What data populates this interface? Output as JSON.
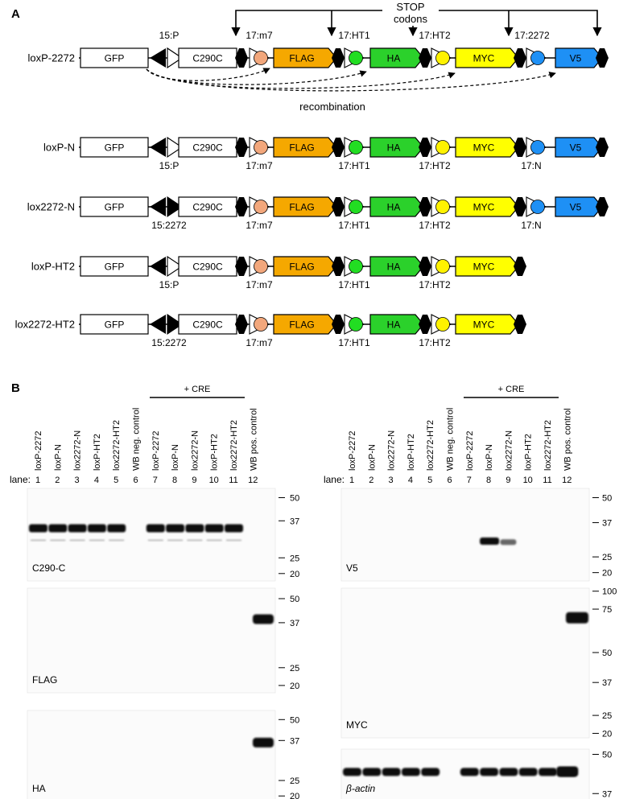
{
  "panelA": {
    "label": "A",
    "stop_label": [
      "STOP",
      "codons"
    ],
    "recombination_label": "recombination",
    "top_sites": [
      "15:P",
      "17:m7",
      "17:HT1",
      "17:HT2",
      "17:2272"
    ],
    "boxes": {
      "gfp": "GFP",
      "c290c": "C290C",
      "flag": "FLAG",
      "ha": "HA",
      "myc": "MYC",
      "v5": "V5"
    },
    "constructs": [
      {
        "name": "loxP-2272",
        "sites": []
      },
      {
        "name": "loxP-N",
        "sites": [
          "15:P",
          "17:m7",
          "17:HT1",
          "17:HT2",
          "17:N"
        ]
      },
      {
        "name": "lox2272-N",
        "sites": [
          "15:2272",
          "17:m7",
          "17:HT1",
          "17:HT2",
          "17:N"
        ]
      },
      {
        "name": "loxP-HT2",
        "sites": [
          "15:P",
          "17:m7",
          "17:HT1",
          "17:HT2"
        ]
      },
      {
        "name": "lox2272-HT2",
        "sites": [
          "15:2272",
          "17:m7",
          "17:HT1",
          "17:HT2"
        ]
      }
    ],
    "colors": {
      "flag": "#F5A800",
      "ha": "#2BD12B",
      "myc": "#FFFF00",
      "v5": "#1E90F5",
      "m7": "#F2A77C",
      "ht1": "#22DD22",
      "ht2": "#FFF200",
      "n2272": "#1E90F5"
    }
  },
  "panelB": {
    "label": "B",
    "cre_label": "+ CRE",
    "lane_word": "lane:",
    "lanes": [
      "loxP-2272",
      "loxP-N",
      "lox2272-N",
      "loxP-HT2",
      "lox2272-HT2",
      "WB neg. control",
      "loxP-2272",
      "loxP-N",
      "lox2272-N",
      "loxP-HT2",
      "lox2272-HT2",
      "WB pos. control"
    ],
    "lane_numbers": [
      "1",
      "2",
      "3",
      "4",
      "5",
      "6",
      "7",
      "8",
      "9",
      "10",
      "11",
      "12"
    ],
    "left_blots": [
      {
        "name": "C290-C",
        "markers": [
          "50",
          "37",
          "25",
          "20"
        ]
      },
      {
        "name": "FLAG",
        "markers": [
          "50",
          "37",
          "25",
          "20"
        ]
      },
      {
        "name": "HA",
        "markers": [
          "50",
          "37",
          "25",
          "20"
        ]
      }
    ],
    "right_blots": [
      {
        "name": "V5",
        "markers": [
          "50",
          "37",
          "25",
          "20"
        ]
      },
      {
        "name": "MYC",
        "markers": [
          "100",
          "75",
          "50",
          "37",
          "25",
          "20"
        ]
      },
      {
        "name": "β-actin",
        "markers": [
          "50",
          "37"
        ]
      }
    ]
  }
}
